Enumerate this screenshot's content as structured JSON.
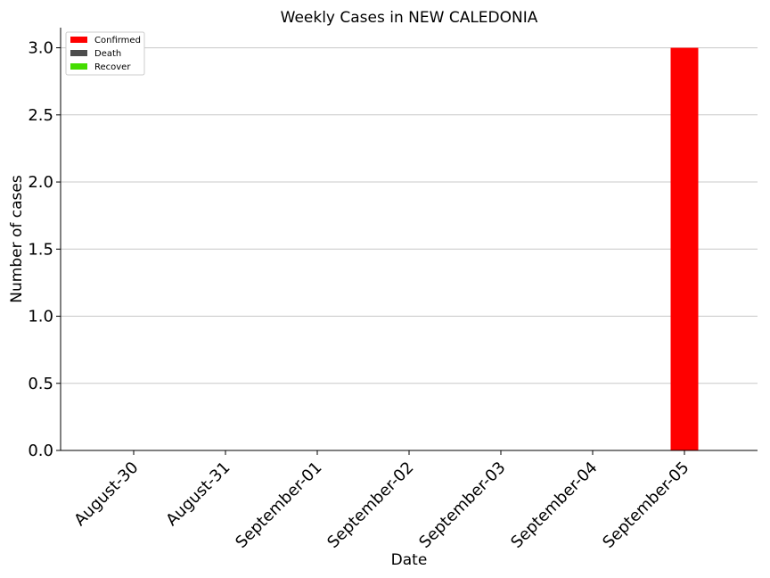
{
  "chart_data": {
    "type": "bar",
    "title": "Weekly Cases in NEW CALEDONIA",
    "xlabel": "Date",
    "ylabel": "Number of cases",
    "categories": [
      "August-30",
      "August-31",
      "September-01",
      "September-02",
      "September-03",
      "September-04",
      "September-05"
    ],
    "series": [
      {
        "name": "Confirmed",
        "color": "#ff0000",
        "values": [
          0,
          0,
          0,
          0,
          0,
          0,
          3
        ]
      },
      {
        "name": "Death",
        "color": "#4d4d4d",
        "values": [
          0,
          0,
          0,
          0,
          0,
          0,
          0
        ]
      },
      {
        "name": "Recover",
        "color": "#44dd00",
        "values": [
          0,
          0,
          0,
          0,
          0,
          0,
          0
        ]
      }
    ],
    "ylim": [
      0,
      3.15
    ],
    "yticks": [
      "0.0",
      "0.5",
      "1.0",
      "1.5",
      "2.0",
      "2.5",
      "3.0"
    ],
    "grid": "horizontal",
    "legend_position": "top-left"
  }
}
